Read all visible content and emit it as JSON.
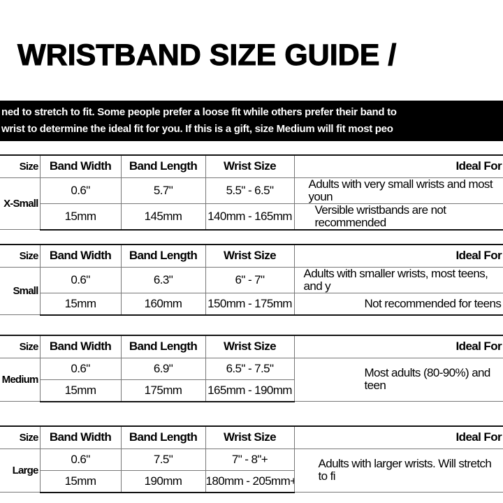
{
  "title": "WRISTBAND SIZE GUIDE /",
  "banner": {
    "line1": "ned to stretch to fit. Some people prefer a loose fit while others prefer their band to",
    "line2": "wrist to determine the ideal fit for you. If this is a gift, size Medium will fit most peo"
  },
  "headers": {
    "size": "Size",
    "band_width": "Band Width",
    "band_length": "Band Length",
    "wrist_size": "Wrist Size",
    "ideal_for": "Ideal For"
  },
  "tables": [
    {
      "size": "X-Small",
      "inch": {
        "width": "0.6\"",
        "length": "5.7\"",
        "wrist": "5.5\" - 6.5\""
      },
      "mm": {
        "width": "15mm",
        "length": "145mm",
        "wrist": "140mm - 165mm"
      },
      "ideal": [
        "Adults with very small wrists and most youn",
        "Versible wristbands are not recommended"
      ]
    },
    {
      "size": "Small",
      "inch": {
        "width": "0.6\"",
        "length": "6.3\"",
        "wrist": "6\" - 7\""
      },
      "mm": {
        "width": "15mm",
        "length": "160mm",
        "wrist": "150mm - 175mm"
      },
      "ideal": [
        "Adults with smaller wrists, most teens, and y",
        "Not recommended for teens"
      ]
    },
    {
      "size": "Medium",
      "inch": {
        "width": "0.6\"",
        "length": "6.9\"",
        "wrist": "6.5\" - 7.5\""
      },
      "mm": {
        "width": "15mm",
        "length": "175mm",
        "wrist": "165mm - 190mm"
      },
      "ideal": [
        "Most adults (80-90%) and teen"
      ]
    },
    {
      "size": "Large",
      "inch": {
        "width": "0.6\"",
        "length": "7.5\"",
        "wrist": "7\" - 8\"+"
      },
      "mm": {
        "width": "15mm",
        "length": "190mm",
        "wrist": "180mm - 205mm+"
      },
      "ideal": [
        "Adults with larger wrists. Will stretch to fi"
      ]
    }
  ]
}
